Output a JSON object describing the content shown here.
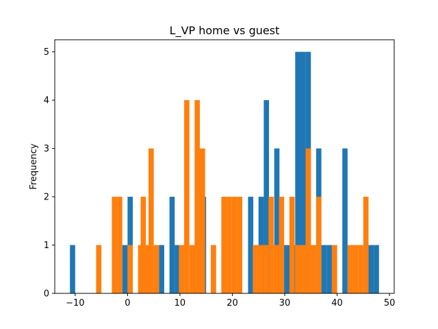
{
  "chart_data": {
    "type": "bar",
    "title": "L_VP home vs guest",
    "xlabel": "",
    "ylabel": "Frequency",
    "xlim": [
      -13.9,
      50.9
    ],
    "ylim": [
      0,
      5.25
    ],
    "x_ticks": [
      -10,
      0,
      10,
      20,
      30,
      40,
      50
    ],
    "y_ticks": [
      0,
      1,
      2,
      3,
      4,
      5
    ],
    "grid": false,
    "legend": "none",
    "bin_width": 1.0,
    "series": [
      {
        "color": "#1f77b4",
        "bars": [
          {
            "x": -11.0,
            "h": 1
          },
          {
            "x": -1.0,
            "h": 1
          },
          {
            "x": 0.0,
            "h": 2
          },
          {
            "x": 6.0,
            "h": 1
          },
          {
            "x": 8.0,
            "h": 2
          },
          {
            "x": 9.0,
            "h": 1
          },
          {
            "x": 12.0,
            "h": 1
          },
          {
            "x": 13.0,
            "h": 3
          },
          {
            "x": 14.0,
            "h": 2
          },
          {
            "x": 23.0,
            "h": 2
          },
          {
            "x": 25.0,
            "h": 2
          },
          {
            "x": 26.0,
            "h": 4
          },
          {
            "x": 28.0,
            "h": 3
          },
          {
            "x": 29.0,
            "h": 1
          },
          {
            "x": 30.0,
            "h": 1
          },
          {
            "x": 31.0,
            "h": 1
          },
          {
            "x": 32.0,
            "h": 5
          },
          {
            "x": 33.0,
            "h": 5
          },
          {
            "x": 34.0,
            "h": 5
          },
          {
            "x": 36.0,
            "h": 3
          },
          {
            "x": 37.0,
            "h": 1
          },
          {
            "x": 38.0,
            "h": 1
          },
          {
            "x": 39.0,
            "h": 1
          },
          {
            "x": 41.0,
            "h": 3
          },
          {
            "x": 46.0,
            "h": 1
          },
          {
            "x": 47.0,
            "h": 1
          }
        ]
      },
      {
        "color": "#ff7f0e",
        "bars": [
          {
            "x": -6.0,
            "h": 1
          },
          {
            "x": -3.0,
            "h": 2
          },
          {
            "x": -2.0,
            "h": 2
          },
          {
            "x": 0.0,
            "h": 1
          },
          {
            "x": 2.0,
            "h": 1
          },
          {
            "x": 2.5,
            "h": 2
          },
          {
            "x": 3.2,
            "h": 1
          },
          {
            "x": 4.0,
            "h": 3
          },
          {
            "x": 5.0,
            "h": 1
          },
          {
            "x": 9.8,
            "h": 1
          },
          {
            "x": 10.8,
            "h": 4
          },
          {
            "x": 11.8,
            "h": 1
          },
          {
            "x": 12.8,
            "h": 4
          },
          {
            "x": 13.8,
            "h": 3
          },
          {
            "x": 15.9,
            "h": 1
          },
          {
            "x": 17.9,
            "h": 2
          },
          {
            "x": 18.9,
            "h": 2
          },
          {
            "x": 19.9,
            "h": 2
          },
          {
            "x": 20.9,
            "h": 2
          },
          {
            "x": 23.9,
            "h": 1
          },
          {
            "x": 24.9,
            "h": 1
          },
          {
            "x": 25.9,
            "h": 1
          },
          {
            "x": 26.9,
            "h": 2
          },
          {
            "x": 27.9,
            "h": 1
          },
          {
            "x": 28.9,
            "h": 2
          },
          {
            "x": 30.9,
            "h": 2
          },
          {
            "x": 32.0,
            "h": 1
          },
          {
            "x": 33.0,
            "h": 1
          },
          {
            "x": 34.0,
            "h": 3
          },
          {
            "x": 35.0,
            "h": 1
          },
          {
            "x": 36.0,
            "h": 2
          },
          {
            "x": 39.0,
            "h": 1
          },
          {
            "x": 42.0,
            "h": 1
          },
          {
            "x": 43.0,
            "h": 1
          },
          {
            "x": 44.0,
            "h": 1
          },
          {
            "x": 45.0,
            "h": 2
          }
        ]
      }
    ]
  }
}
